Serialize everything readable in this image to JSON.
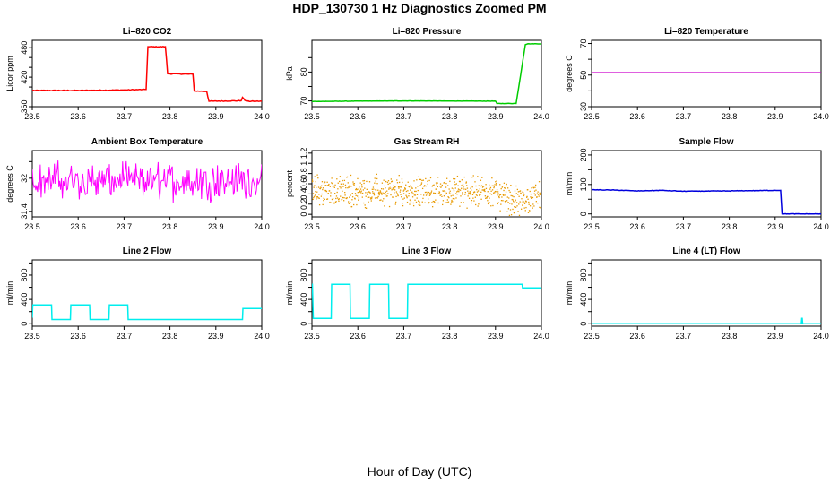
{
  "figure": {
    "title": "HDP_130730  1 Hz Diagnostics Zoomed PM",
    "xlabel": "Hour of Day (UTC)"
  },
  "chart_data": [
    {
      "type": "line",
      "title": "Li–820 CO2",
      "ylabel": "Licor ppm",
      "color": "#ff0000",
      "xlim": [
        23.5,
        24.0
      ],
      "ylim": [
        360,
        495
      ],
      "xticks": [
        "23.5",
        "23.6",
        "23.7",
        "23.8",
        "23.9",
        "24.0"
      ],
      "yticks": [
        360,
        420,
        480
      ],
      "minor_yticks": [
        400,
        440,
        460
      ],
      "x": [
        23.5,
        23.6,
        23.7,
        23.748,
        23.752,
        23.79,
        23.795,
        23.85,
        23.853,
        23.88,
        23.885,
        23.955,
        23.958,
        23.963,
        23.968,
        24.0
      ],
      "values": [
        393,
        393,
        394,
        395,
        482,
        482,
        427,
        426,
        392,
        391,
        371,
        372,
        379,
        373,
        371,
        371
      ],
      "noise": 1.5
    },
    {
      "type": "line",
      "title": "Li–820 Pressure",
      "ylabel": "kPa",
      "color": "#00cc00",
      "xlim": [
        23.5,
        24.0
      ],
      "ylim": [
        68,
        91
      ],
      "xticks": [
        "23.5",
        "23.6",
        "23.7",
        "23.8",
        "23.9",
        "24.0"
      ],
      "yticks": [
        70,
        80
      ],
      "minor_yticks": [
        75,
        85
      ],
      "x": [
        23.5,
        23.7,
        23.9,
        23.903,
        23.945,
        23.965,
        23.97,
        24.0
      ],
      "values": [
        69.8,
        70.0,
        69.9,
        69.1,
        69.1,
        89.5,
        89.8,
        89.8
      ],
      "noise": 0.1
    },
    {
      "type": "line",
      "title": "Li–820 Temperature",
      "ylabel": "degrees C",
      "color": "#cc00cc",
      "xlim": [
        23.5,
        24.0
      ],
      "ylim": [
        30,
        72
      ],
      "xticks": [
        "23.5",
        "23.6",
        "23.7",
        "23.8",
        "23.9",
        "24.0"
      ],
      "yticks": [
        30,
        50,
        70
      ],
      "minor_yticks": [
        40,
        60
      ],
      "x": [
        23.5,
        24.0
      ],
      "values": [
        51.5,
        51.5
      ],
      "noise": 0
    },
    {
      "type": "line",
      "title": "Ambient Box Temperature",
      "ylabel": "degrees C",
      "color": "#ff00ff",
      "xlim": [
        23.5,
        24.0
      ],
      "ylim": [
        31.3,
        32.5
      ],
      "xticks": [
        "23.5",
        "23.6",
        "23.7",
        "23.8",
        "23.9",
        "24.0"
      ],
      "yticks": [
        31.4,
        32.0
      ],
      "minor_yticks": [
        31.7,
        32.3
      ],
      "x": [
        23.5,
        24.0
      ],
      "values": [
        31.95,
        31.95
      ],
      "noise": 0.4,
      "dense": true
    },
    {
      "type": "scatter",
      "title": "Gas Stream RH",
      "ylabel": "percent",
      "color": "#e89a00",
      "xlim": [
        23.5,
        24.0
      ],
      "ylim": [
        -0.05,
        1.25
      ],
      "xticks": [
        "23.5",
        "23.6",
        "23.7",
        "23.8",
        "23.9",
        "24.0"
      ],
      "yticks": [
        0.0,
        0.2,
        0.4,
        0.6,
        0.8,
        1.0,
        1.2
      ],
      "x": [
        23.5,
        23.9,
        23.94,
        23.98,
        24.0
      ],
      "values": [
        0.45,
        0.45,
        0.25,
        0.3,
        0.4
      ],
      "noise": 0.35
    },
    {
      "type": "line",
      "title": "Sample Flow",
      "ylabel": "ml/min",
      "color": "#0000dd",
      "xlim": [
        23.5,
        24.0
      ],
      "ylim": [
        -10,
        215
      ],
      "xticks": [
        "23.5",
        "23.6",
        "23.7",
        "23.8",
        "23.9",
        "24.0"
      ],
      "yticks": [
        0,
        100,
        200
      ],
      "minor_yticks": [
        50,
        150
      ],
      "x": [
        23.5,
        23.55,
        23.6,
        23.65,
        23.7,
        23.8,
        23.9,
        23.912,
        23.915,
        24.0
      ],
      "values": [
        82,
        81,
        78,
        80,
        77,
        78,
        80,
        80,
        0,
        0
      ],
      "noise": 1.5
    },
    {
      "type": "line",
      "title": "Line 2 Flow",
      "ylabel": "ml/min",
      "color": "#00eeee",
      "xlim": [
        23.5,
        24.0
      ],
      "ylim": [
        -40,
        1050
      ],
      "xticks": [
        "23.5",
        "23.6",
        "23.7",
        "23.8",
        "23.9",
        "24.0"
      ],
      "yticks": [
        0,
        400,
        800
      ],
      "minor_yticks": [
        200,
        600,
        1000
      ],
      "x": [
        23.5,
        23.501,
        23.542,
        23.543,
        23.583,
        23.584,
        23.625,
        23.626,
        23.667,
        23.668,
        23.708,
        23.709,
        23.958,
        23.959,
        24.0
      ],
      "values": [
        100,
        310,
        310,
        70,
        70,
        310,
        310,
        70,
        70,
        310,
        310,
        70,
        70,
        250,
        250
      ],
      "noise": 0
    },
    {
      "type": "line",
      "title": "Line 3 Flow",
      "ylabel": "ml/min",
      "color": "#00eeee",
      "xlim": [
        23.5,
        24.0
      ],
      "ylim": [
        -40,
        1050
      ],
      "xticks": [
        "23.5",
        "23.6",
        "23.7",
        "23.8",
        "23.9",
        "24.0"
      ],
      "yticks": [
        0,
        400,
        800
      ],
      "minor_yticks": [
        200,
        600,
        1000
      ],
      "x": [
        23.5,
        23.501,
        23.503,
        23.542,
        23.543,
        23.583,
        23.584,
        23.625,
        23.626,
        23.667,
        23.668,
        23.708,
        23.709,
        23.958,
        23.959,
        24.0
      ],
      "values": [
        650,
        650,
        90,
        90,
        650,
        650,
        90,
        90,
        650,
        650,
        90,
        90,
        650,
        650,
        590,
        590
      ],
      "noise": 0
    },
    {
      "type": "line",
      "title": "Line 4 (LT) Flow",
      "ylabel": "ml/min",
      "color": "#00eeee",
      "xlim": [
        23.5,
        24.0
      ],
      "ylim": [
        -40,
        1050
      ],
      "xticks": [
        "23.5",
        "23.6",
        "23.7",
        "23.8",
        "23.9",
        "24.0"
      ],
      "yticks": [
        0,
        400,
        800
      ],
      "minor_yticks": [
        200,
        600,
        1000
      ],
      "x": [
        23.5,
        23.957,
        23.958,
        23.959,
        23.96,
        24.0
      ],
      "values": [
        0,
        0,
        90,
        90,
        0,
        0
      ],
      "noise": 0
    }
  ]
}
